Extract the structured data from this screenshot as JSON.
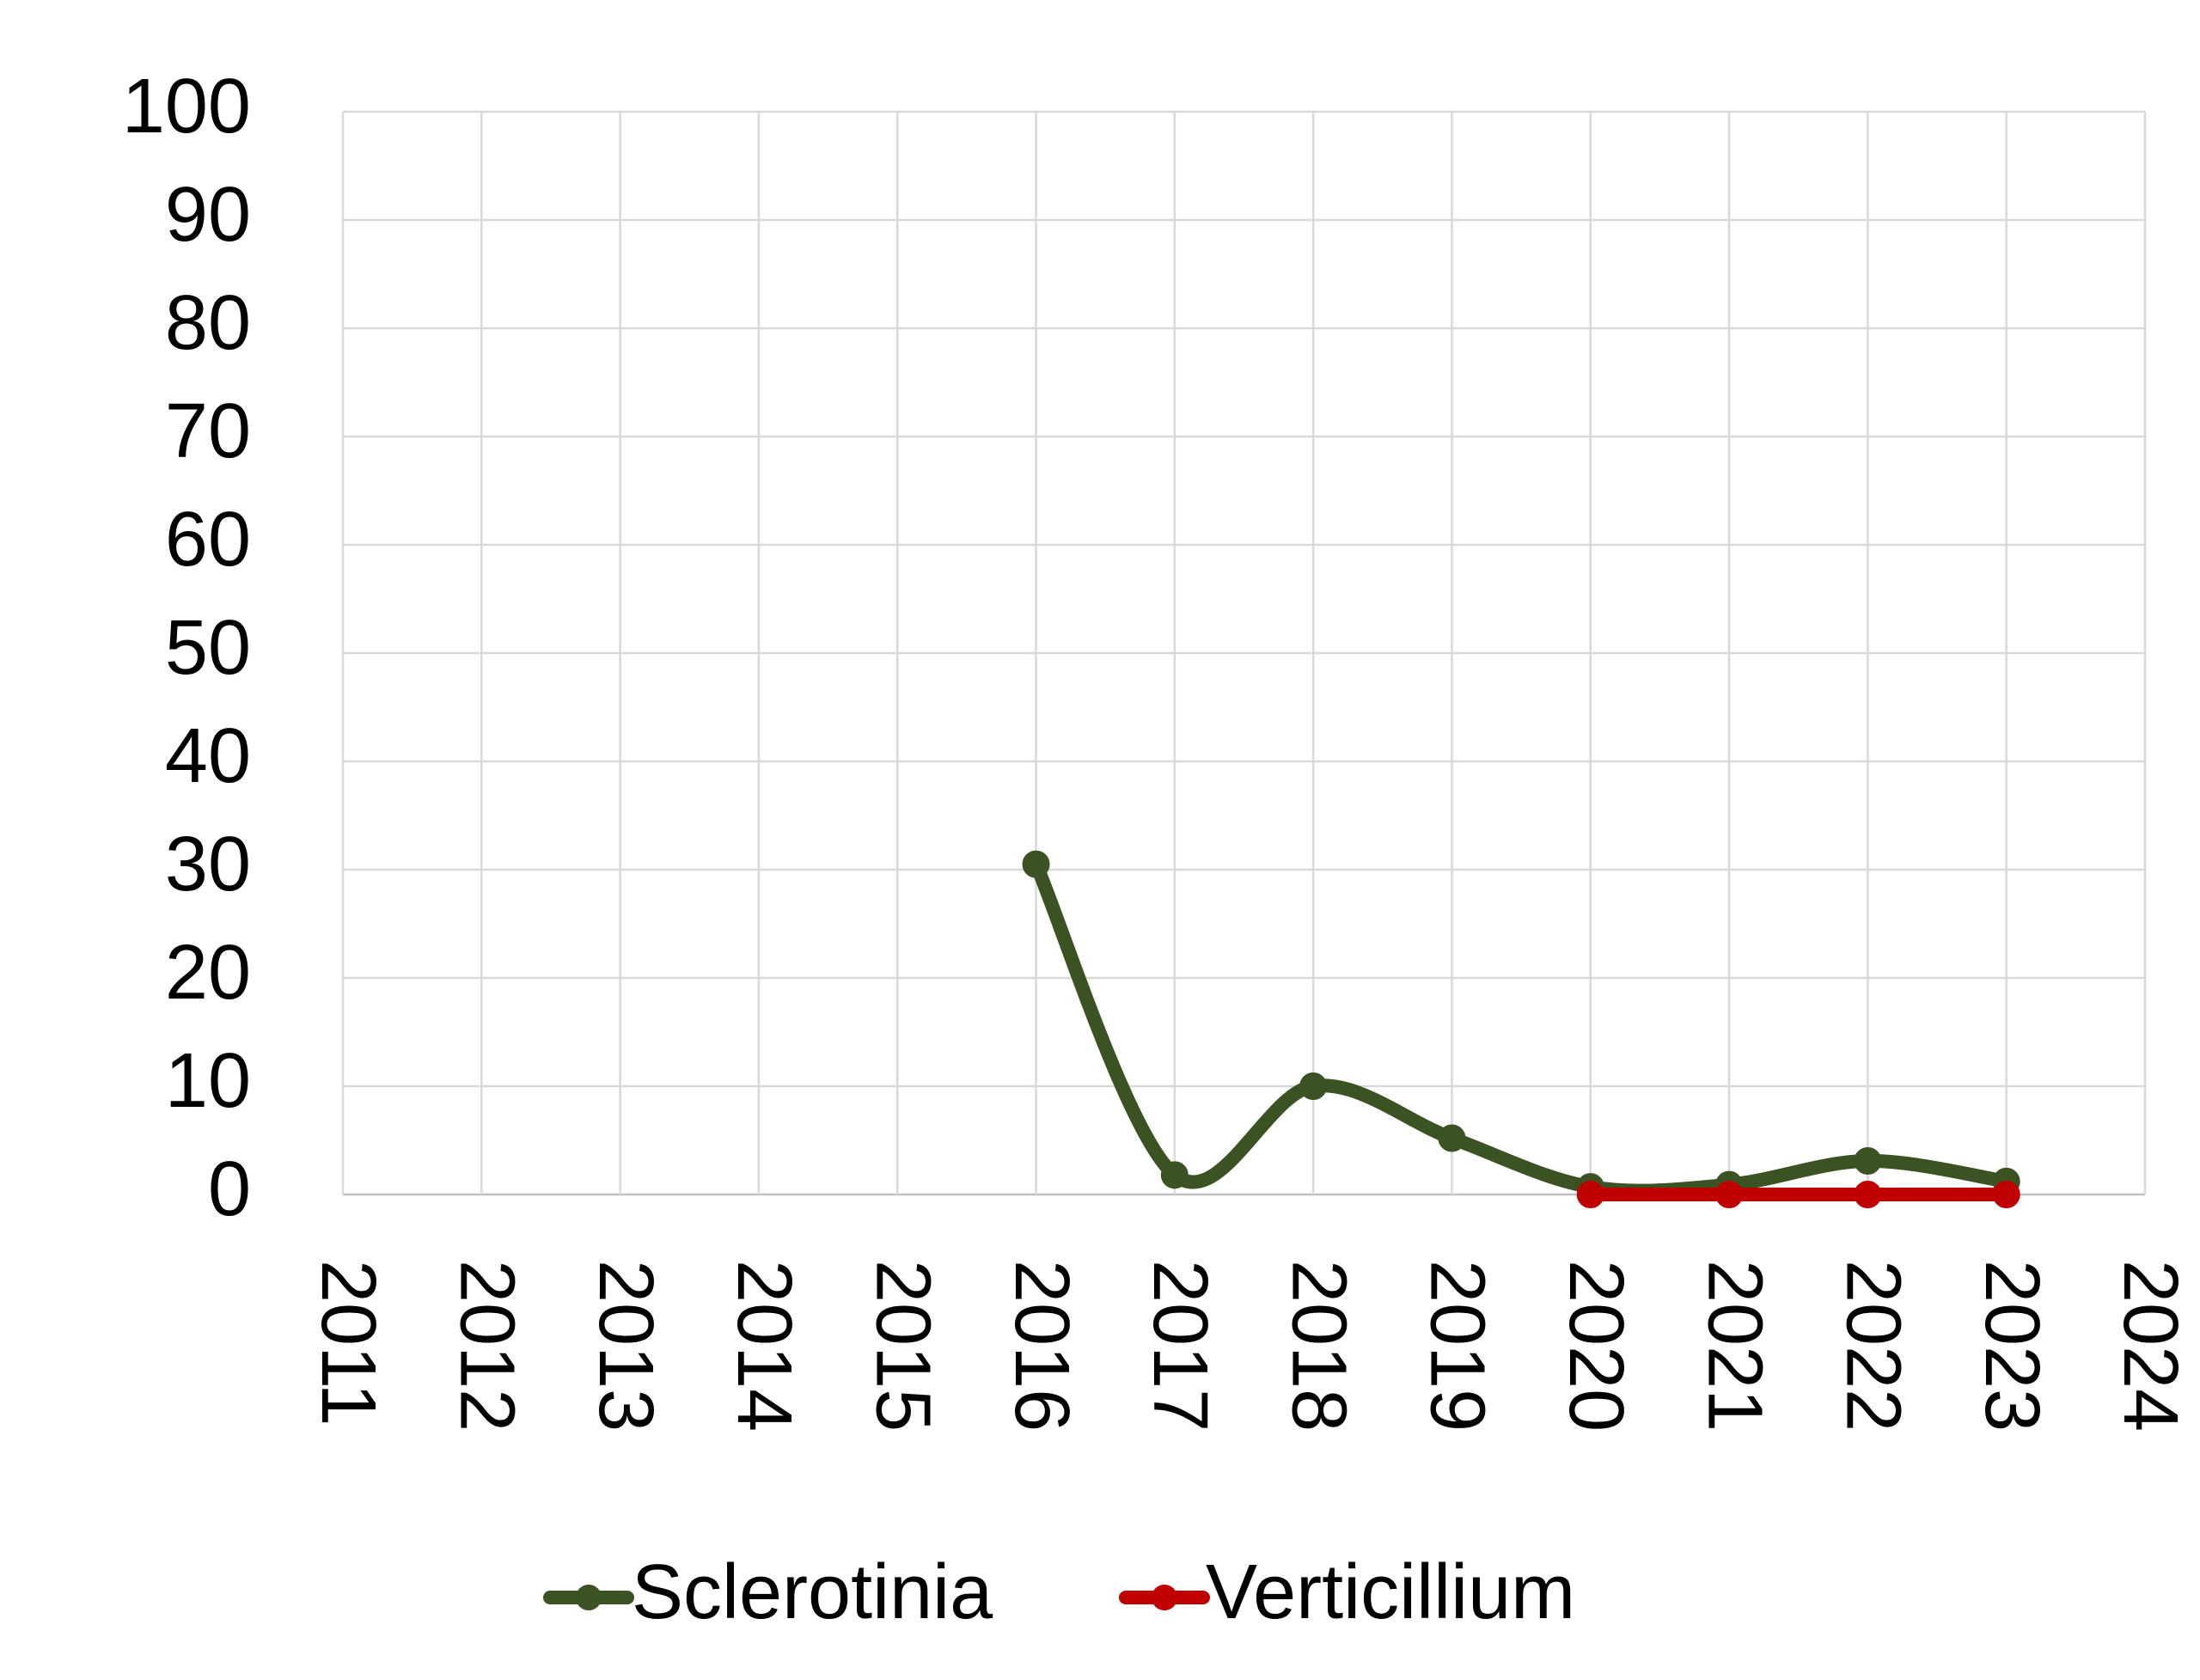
{
  "chart_data": {
    "type": "line",
    "x": [
      2011,
      2012,
      2013,
      2014,
      2015,
      2016,
      2017,
      2018,
      2019,
      2020,
      2021,
      2022,
      2023,
      2024
    ],
    "series": [
      {
        "name": "Sclerotinia",
        "color": "#3b5323",
        "values": [
          null,
          null,
          null,
          null,
          null,
          30.5,
          1.8,
          10,
          5.2,
          0.7,
          0.9,
          3.1,
          1.2,
          null
        ]
      },
      {
        "name": "Verticillium",
        "color": "#c00000",
        "values": [
          null,
          null,
          null,
          null,
          null,
          null,
          null,
          null,
          null,
          0,
          0,
          0,
          0,
          null
        ]
      }
    ],
    "xlim": [
      2011,
      2024
    ],
    "xticks": [
      2011,
      2012,
      2013,
      2014,
      2015,
      2016,
      2017,
      2018,
      2019,
      2020,
      2021,
      2022,
      2023,
      2024
    ],
    "ylim": [
      0,
      100
    ],
    "yticks": [
      0,
      10,
      20,
      30,
      40,
      50,
      60,
      70,
      80,
      90,
      100
    ],
    "grid": true,
    "smooth": true,
    "legend": "bottom"
  }
}
